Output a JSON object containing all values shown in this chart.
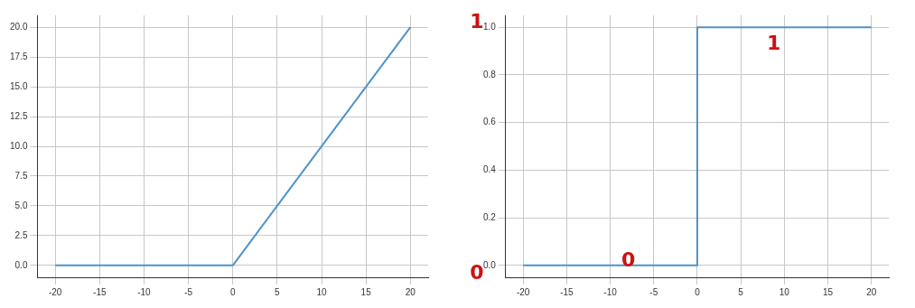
{
  "chart_data": [
    {
      "type": "line",
      "x": [
        -20,
        0,
        20
      ],
      "values": [
        0,
        0,
        20
      ],
      "color": "#4f93c7",
      "xlim": [
        -22,
        22
      ],
      "xticks": [
        -20,
        -15,
        -10,
        -5,
        0,
        5,
        10,
        15,
        20
      ],
      "ylim": [
        -1,
        21
      ],
      "yticks": [
        {
          "value": 0,
          "label": "0.0"
        },
        {
          "value": 2.5,
          "label": "2.5"
        },
        {
          "value": 5,
          "label": "5.0"
        },
        {
          "value": 7.5,
          "label": "7.5"
        },
        {
          "value": 10,
          "label": "10.0"
        },
        {
          "value": 12.5,
          "label": "12.5"
        },
        {
          "value": 15,
          "label": "15.0"
        },
        {
          "value": 17.5,
          "label": "17.5"
        },
        {
          "value": 20,
          "label": "20.0"
        }
      ],
      "grid": true,
      "legend": false
    },
    {
      "type": "step",
      "x": [
        -20,
        0,
        20
      ],
      "values": [
        0,
        1,
        1
      ],
      "color": "#4f93c7",
      "xlim": [
        -22,
        22
      ],
      "xticks": [
        -20,
        -15,
        -10,
        -5,
        0,
        5,
        10,
        15,
        20
      ],
      "ylim": [
        -0.05,
        1.05
      ],
      "yticks": [
        {
          "value": 0,
          "label": "0.0"
        },
        {
          "value": 0.2,
          "label": "0.2"
        },
        {
          "value": 0.4,
          "label": "0.4"
        },
        {
          "value": 0.6,
          "label": "0.6"
        },
        {
          "value": 0.8,
          "label": "0.8"
        },
        {
          "value": 1,
          "label": "1.0"
        }
      ],
      "grid": true,
      "legend": false,
      "annotations": [
        "1",
        "0",
        "1",
        "0"
      ]
    }
  ]
}
